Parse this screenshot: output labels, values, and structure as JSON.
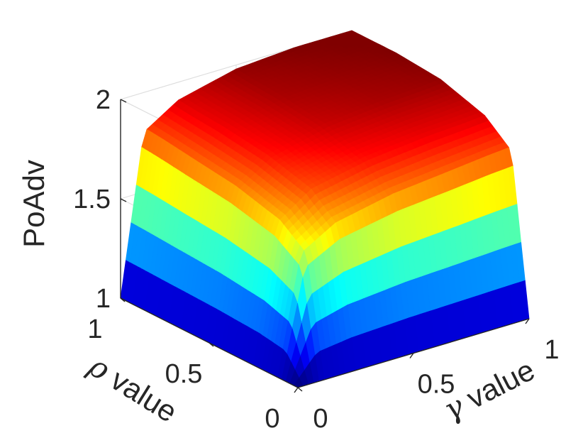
{
  "chart_data": {
    "type": "surface",
    "title": "",
    "xlabel": {
      "symbol": "γ",
      "text": " value"
    },
    "ylabel": {
      "symbol": "ρ",
      "text": " value"
    },
    "zlabel": "PoAdv",
    "xlim": [
      0,
      1
    ],
    "ylim": [
      0,
      1
    ],
    "zlim": [
      1,
      2
    ],
    "xticks": [
      "0",
      "0.5",
      "1"
    ],
    "yticks": [
      "0",
      "0.5",
      "1"
    ],
    "zticks": [
      "1",
      "1.5",
      "2"
    ],
    "colormap": "jet",
    "grid": true,
    "view": "3d-box",
    "surface_samples": {
      "gamma": [
        0,
        0.1,
        0.25,
        0.5,
        0.75,
        0.9,
        1
      ],
      "rho": [
        0,
        0.1,
        0.25,
        0.5,
        0.75,
        0.9,
        1
      ],
      "z": [
        [
          1.0,
          1.0,
          1.0,
          1.0,
          1.0,
          1.0,
          1.0
        ],
        [
          1.0,
          1.58,
          1.68,
          1.74,
          1.77,
          1.79,
          1.8
        ],
        [
          1.0,
          1.68,
          1.8,
          1.86,
          1.89,
          1.9,
          1.91
        ],
        [
          1.0,
          1.74,
          1.86,
          1.93,
          1.96,
          1.97,
          1.98
        ],
        [
          1.0,
          1.77,
          1.89,
          1.96,
          1.98,
          1.99,
          2.0
        ],
        [
          1.0,
          1.79,
          1.9,
          1.97,
          1.99,
          2.0,
          2.0
        ],
        [
          1.0,
          1.8,
          1.91,
          1.98,
          2.0,
          2.0,
          2.0
        ]
      ]
    }
  }
}
